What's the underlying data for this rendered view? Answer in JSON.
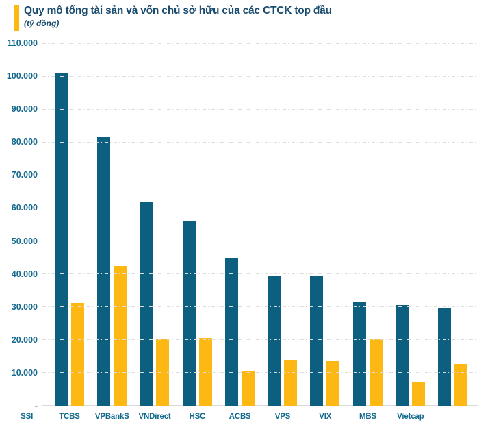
{
  "title": "Quy mô tổng tài sản và vốn chủ sở hữu của các CTCK top đầu",
  "subtitle": "(tỷ đồng)",
  "colors": {
    "assets_bar": "#0d5f80",
    "equity_bar": "#fdb813",
    "title_text": "#1b4c6e",
    "axis_label": "#136a8e",
    "gridline": "#dcdcdc",
    "baseline": "#dadada",
    "background": "#ffffff"
  },
  "chart_data": {
    "type": "bar",
    "title": "Quy mô tổng tài sản và vốn chủ sở hữu của các CTCK top đầu",
    "subtitle": "(tỷ đồng)",
    "unit": "tỷ đồng",
    "categories": [
      "SSI",
      "TCBS",
      "VPBankS",
      "VNDirect",
      "HSC",
      "ACBS",
      "VPS",
      "VIX",
      "MBS",
      "Vietcap"
    ],
    "series": [
      {
        "name": "Tổng tài sản",
        "color_key": "assets_bar",
        "values": [
          100900,
          81600,
          62000,
          56000,
          44700,
          39600,
          39300,
          31600,
          30500,
          29800
        ]
      },
      {
        "name": "Vốn chủ sở hữu",
        "color_key": "equity_bar",
        "values": [
          31200,
          42500,
          20400,
          20600,
          10500,
          14000,
          13800,
          20200,
          7000,
          12600
        ]
      }
    ],
    "ylim": [
      0,
      110000
    ],
    "yticks": [
      {
        "value": 110000,
        "label": "110.000"
      },
      {
        "value": 100000,
        "label": "100.000"
      },
      {
        "value": 90000,
        "label": "90.000"
      },
      {
        "value": 80000,
        "label": "80.000"
      },
      {
        "value": 70000,
        "label": "70.000"
      },
      {
        "value": 60000,
        "label": "60.000"
      },
      {
        "value": 50000,
        "label": "50.000"
      },
      {
        "value": 40000,
        "label": "40.000"
      },
      {
        "value": 30000,
        "label": "30.000"
      },
      {
        "value": 20000,
        "label": "20.000"
      },
      {
        "value": 10000,
        "label": "10.000"
      },
      {
        "value": 0,
        "label": "-"
      }
    ],
    "grid": "horizontal dash-dot",
    "legend": "none"
  }
}
